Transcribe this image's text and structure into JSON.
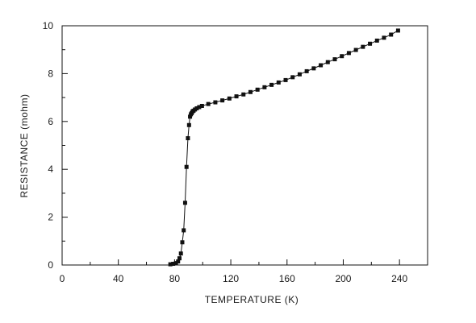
{
  "chart_data": {
    "type": "line",
    "title": "",
    "xlabel": "TEMPERATURE (K)",
    "ylabel": "RESISTANCE (mohm)",
    "xlim": [
      0,
      260
    ],
    "ylim": [
      0,
      10
    ],
    "xticks": [
      0,
      40,
      80,
      120,
      160,
      200,
      240
    ],
    "yticks": [
      0,
      2,
      4,
      6,
      8,
      10
    ],
    "grid": false,
    "legend": "none",
    "marker": "square",
    "series": [
      {
        "x": [
          77,
          79,
          81,
          82.5,
          83.5,
          84.5,
          85.5,
          86.5,
          87.5,
          88.5,
          89.5,
          90.3,
          91.0,
          91.6,
          92.2,
          92.8,
          93.5,
          94.5,
          95.8,
          97.5,
          99.5,
          104,
          109,
          114,
          119,
          124,
          129,
          134,
          139,
          144,
          149,
          154,
          159,
          164,
          169,
          174,
          179,
          184,
          189,
          194,
          199,
          204,
          209,
          214,
          219,
          224,
          229,
          234,
          239
        ],
        "y": [
          0.03,
          0.05,
          0.08,
          0.15,
          0.28,
          0.48,
          0.95,
          1.45,
          2.6,
          4.1,
          5.3,
          5.85,
          6.2,
          6.3,
          6.35,
          6.42,
          6.45,
          6.5,
          6.55,
          6.6,
          6.65,
          6.73,
          6.8,
          6.88,
          6.96,
          7.05,
          7.13,
          7.23,
          7.33,
          7.43,
          7.53,
          7.63,
          7.73,
          7.85,
          7.97,
          8.1,
          8.22,
          8.35,
          8.48,
          8.6,
          8.73,
          8.86,
          8.99,
          9.12,
          9.25,
          9.38,
          9.5,
          9.63,
          9.8
        ]
      }
    ]
  }
}
